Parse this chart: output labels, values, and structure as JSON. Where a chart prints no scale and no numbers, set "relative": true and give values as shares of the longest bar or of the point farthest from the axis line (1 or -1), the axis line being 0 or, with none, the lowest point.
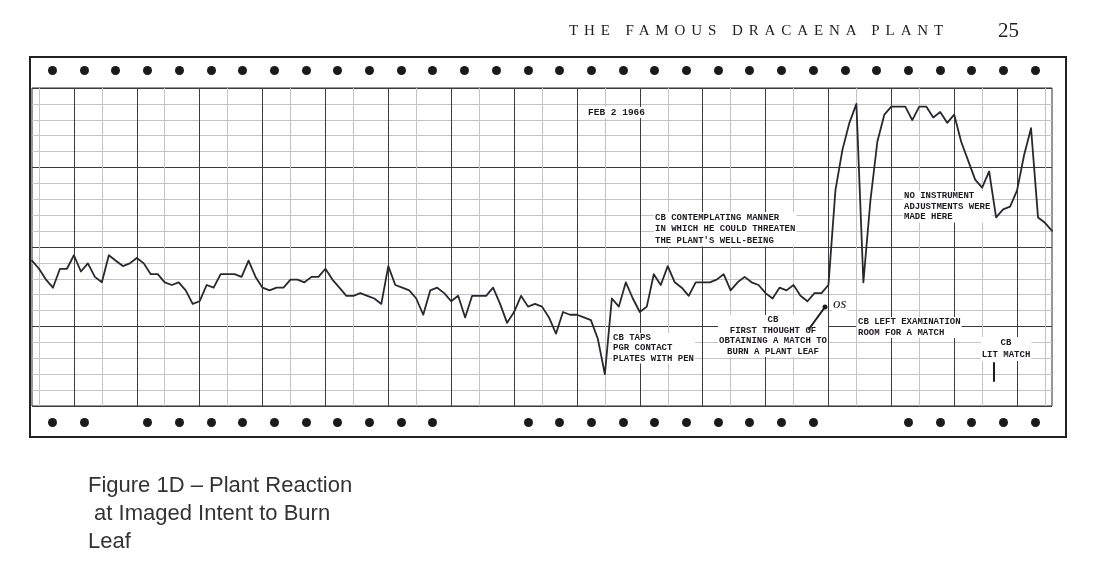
{
  "chart_data": {
    "type": "line",
    "title": "Figure 1D – Plant Reaction at Imaged Intent to Burn Leaf",
    "annotations": [
      "THE FAMOUS DRACAENA PLANT",
      "25",
      "FEB 2 1966",
      "CB CONTEMPLATING MANNER\nIN WHICH HE COULD THREATEN\nTHE PLANT'S WELL-BEING",
      "CB TAPS\nPGR CONTACT\nPLATES WITH PEN",
      "CB\nFIRST THOUGHT OF\nOBTAINING A MATCH TO\nBURN A PLANT LEAF",
      "CB LEFT EXAMINATION\nROOM FOR A MATCH",
      "NO INSTRUMENT\nADJUSTMENTS WERE\nMADE HERE",
      "CB\nLIT MATCH",
      "os"
    ],
    "categories": [
      null,
      null,
      null,
      null,
      null,
      null,
      null,
      null,
      null,
      null,
      null,
      null,
      null,
      null,
      null,
      null,
      null,
      null,
      null,
      null,
      null,
      null,
      null,
      null,
      null,
      null,
      null,
      null,
      null,
      null,
      null,
      null,
      null,
      null,
      null,
      null,
      null,
      null,
      null,
      null,
      null,
      null,
      null,
      null,
      null,
      null,
      null,
      null,
      null,
      null,
      null,
      null,
      null,
      null,
      null,
      null,
      null,
      null,
      null,
      null,
      null,
      null,
      null,
      null,
      null,
      null,
      null,
      null,
      null,
      null,
      null,
      null,
      null,
      null,
      null,
      null,
      null,
      null,
      null,
      null,
      null,
      null,
      null,
      null,
      null,
      null,
      null,
      null,
      null,
      null,
      null,
      null,
      null,
      null,
      null,
      null,
      null,
      null,
      null,
      null,
      null,
      null,
      null,
      null,
      null,
      null,
      null,
      null,
      null,
      null,
      null,
      null,
      null,
      null,
      null,
      null,
      null,
      null,
      null,
      null,
      null,
      null,
      null,
      null,
      null,
      null,
      null,
      null,
      null,
      null,
      null,
      null,
      null,
      null,
      null,
      null,
      null,
      null,
      null,
      null,
      null,
      null,
      null,
      null,
      null,
      null,
      null
    ],
    "values": [
      0.42,
      0.39,
      0.35,
      0.32,
      0.39,
      0.39,
      0.44,
      0.38,
      0.41,
      0.36,
      0.34,
      0.44,
      0.42,
      0.4,
      0.41,
      0.43,
      0.41,
      0.37,
      0.37,
      0.34,
      0.33,
      0.34,
      0.31,
      0.26,
      0.27,
      0.33,
      0.32,
      0.37,
      0.37,
      0.37,
      0.36,
      0.42,
      0.36,
      0.32,
      0.31,
      0.32,
      0.32,
      0.35,
      0.35,
      0.34,
      0.36,
      0.36,
      0.39,
      0.35,
      0.32,
      0.29,
      0.29,
      0.3,
      0.29,
      0.28,
      0.26,
      0.4,
      0.33,
      0.32,
      0.31,
      0.28,
      0.22,
      0.31,
      0.32,
      0.3,
      0.27,
      0.29,
      0.21,
      0.29,
      0.29,
      0.29,
      0.32,
      0.26,
      0.19,
      0.23,
      0.29,
      0.25,
      0.26,
      0.25,
      0.21,
      0.15,
      0.23,
      0.22,
      0.22,
      0.21,
      0.2,
      0.13,
      0,
      0.28,
      0.25,
      0.34,
      0.28,
      0.23,
      0.25,
      0.37,
      0.33,
      0.4,
      0.34,
      0.32,
      0.29,
      0.34,
      0.34,
      0.34,
      0.35,
      0.37,
      0.31,
      0.34,
      0.36,
      0.34,
      0.33,
      0.3,
      0.28,
      0.32,
      0.31,
      0.33,
      0.29,
      0.27,
      0.3,
      0.3,
      0.33,
      0.68,
      0.83,
      0.93,
      1,
      0.34,
      0.64,
      0.86,
      0.96,
      0.99,
      0.99,
      0.99,
      0.94,
      0.99,
      0.99,
      0.95,
      0.97,
      0.93,
      0.96,
      0.86,
      0.79,
      0.72,
      0.69,
      0.75,
      0.58,
      0.61,
      0.62,
      0.68,
      0.81,
      0.91,
      0.58,
      0.56,
      0.53
    ],
    "color": "#2b2730",
    "relative": true,
    "grid": true,
    "line_style": "solid"
  }
}
